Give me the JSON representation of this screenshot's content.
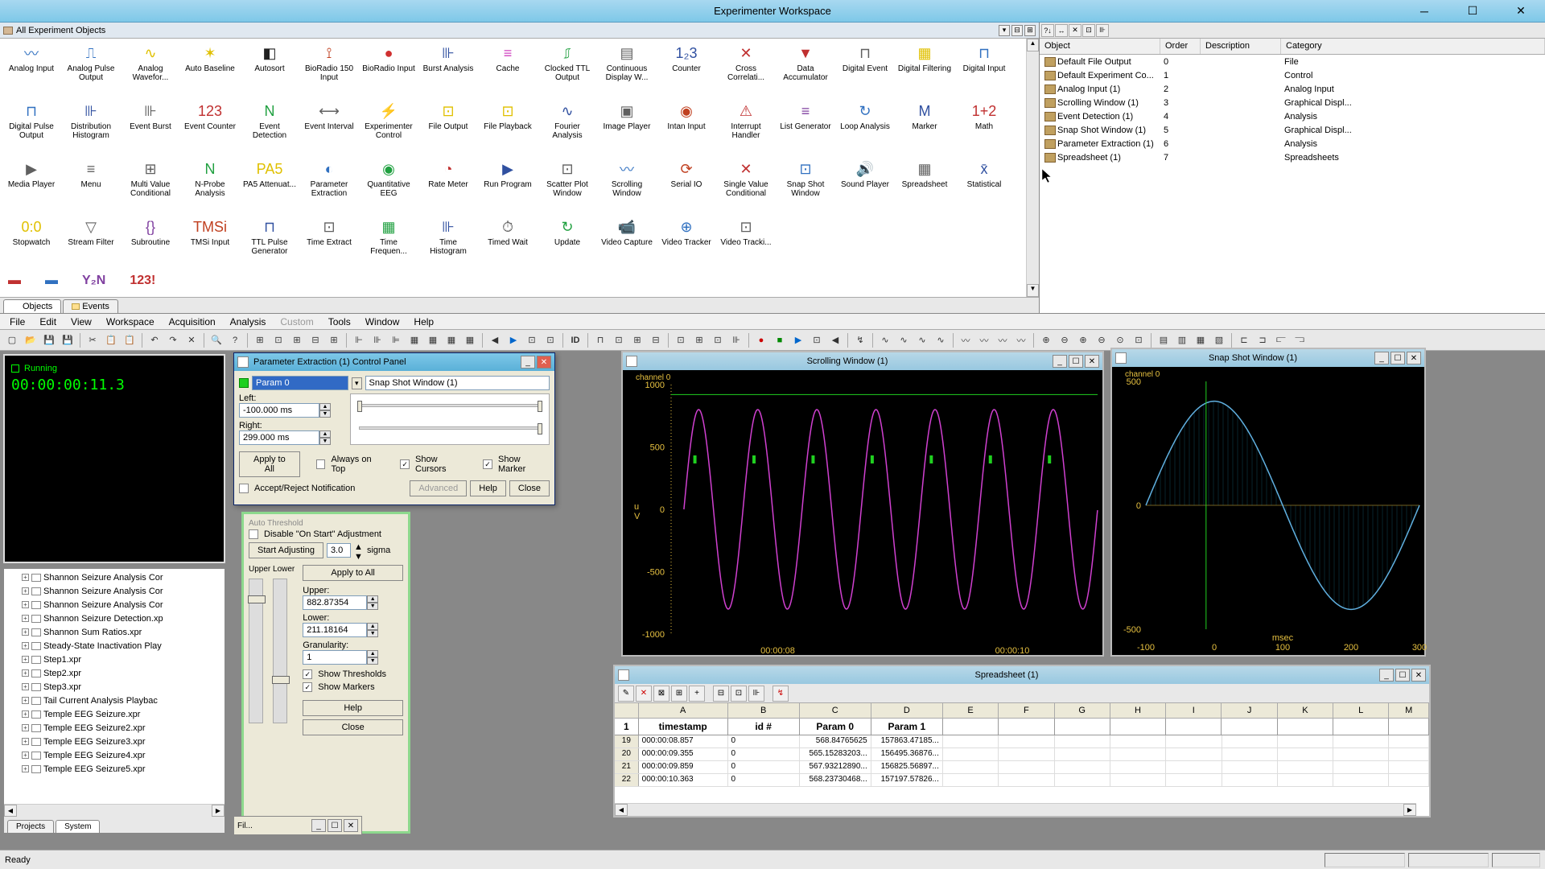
{
  "window": {
    "title": "Experimenter Workspace"
  },
  "palette": {
    "title": "All Experiment Objects",
    "tabs": {
      "objects": "Objects",
      "events": "Events"
    },
    "tools": [
      {
        "label": "Analog Input",
        "icon": "〰",
        "c": "#3070c0"
      },
      {
        "label": "Analog Pulse Output",
        "icon": "⎍",
        "c": "#3070c0"
      },
      {
        "label": "Analog Wavefor...",
        "icon": "∿",
        "c": "#e0c000"
      },
      {
        "label": "Auto Baseline",
        "icon": "✶",
        "c": "#e0c000"
      },
      {
        "label": "Autosort",
        "icon": "◧",
        "c": "#202020"
      },
      {
        "label": "BioRadio 150 Input",
        "icon": "⟟",
        "c": "#c04020"
      },
      {
        "label": "BioRadio Input",
        "icon": "●",
        "c": "#d03030"
      },
      {
        "label": "Burst Analysis",
        "icon": "⊪",
        "c": "#3050a0"
      },
      {
        "label": "Cache",
        "icon": "≡",
        "c": "#d040c0"
      },
      {
        "label": "Clocked TTL Output",
        "icon": "⎎",
        "c": "#20a040"
      },
      {
        "label": "Continuous Display W...",
        "icon": "▤",
        "c": "#606060"
      },
      {
        "label": "Counter",
        "icon": "1₂3",
        "c": "#3050a0"
      },
      {
        "label": "Cross Correlati...",
        "icon": "✕",
        "c": "#c03030"
      },
      {
        "label": "Data Accumulator",
        "icon": "▼",
        "c": "#c03030"
      },
      {
        "label": "Digital Event",
        "icon": "⊓",
        "c": "#606060"
      },
      {
        "label": "Digital Filtering",
        "icon": "▦",
        "c": "#e0c000"
      },
      {
        "label": "Digital Input",
        "icon": "⊓",
        "c": "#3070c0"
      },
      {
        "label": "Digital Pulse Output",
        "icon": "⊓",
        "c": "#3070c0"
      },
      {
        "label": "Distribution Histogram",
        "icon": "⊪",
        "c": "#3050a0"
      },
      {
        "label": "Event Burst",
        "icon": "⊪",
        "c": "#606060"
      },
      {
        "label": "Event Counter",
        "icon": "123",
        "c": "#c03030"
      },
      {
        "label": "Event Detection",
        "icon": "N",
        "c": "#20a040"
      },
      {
        "label": "Event Interval",
        "icon": "⟷",
        "c": "#606060"
      },
      {
        "label": "Experimenter Control",
        "icon": "⚡",
        "c": "#e0c000"
      },
      {
        "label": "File Output",
        "icon": "⊡",
        "c": "#e0c000"
      },
      {
        "label": "File Playback",
        "icon": "⊡",
        "c": "#e0c000"
      },
      {
        "label": "Fourier Analysis",
        "icon": "∿",
        "c": "#3050a0"
      },
      {
        "label": "Image Player",
        "icon": "▣",
        "c": "#606060"
      },
      {
        "label": "Intan Input",
        "icon": "◉",
        "c": "#c04020"
      },
      {
        "label": "Interrupt Handler",
        "icon": "⚠",
        "c": "#c03030"
      },
      {
        "label": "List Generator",
        "icon": "≡",
        "c": "#8040a0"
      },
      {
        "label": "Loop Analysis",
        "icon": "↻",
        "c": "#3070c0"
      },
      {
        "label": "Marker",
        "icon": "M",
        "c": "#3050a0"
      },
      {
        "label": "Math",
        "icon": "1+2",
        "c": "#c03030"
      },
      {
        "label": "Media Player",
        "icon": "▶",
        "c": "#606060"
      },
      {
        "label": "Menu",
        "icon": "≡",
        "c": "#606060"
      },
      {
        "label": "Multi Value Conditional",
        "icon": "⊞",
        "c": "#606060"
      },
      {
        "label": "N-Probe Analysis",
        "icon": "N",
        "c": "#20a040"
      },
      {
        "label": "PA5 Attenuat...",
        "icon": "PA5",
        "c": "#e0c000"
      },
      {
        "label": "Parameter Extraction",
        "icon": "◐",
        "c": "#3070c0"
      },
      {
        "label": "Quantitative EEG",
        "icon": "◉",
        "c": "#20a040"
      },
      {
        "label": "Rate Meter",
        "icon": "◔",
        "c": "#c03030"
      },
      {
        "label": "Run Program",
        "icon": "▶",
        "c": "#3050a0"
      },
      {
        "label": "Scatter Plot Window",
        "icon": "⊡",
        "c": "#606060"
      },
      {
        "label": "Scrolling Window",
        "icon": "〰",
        "c": "#3070c0"
      },
      {
        "label": "Serial IO",
        "icon": "⟳",
        "c": "#c04020"
      },
      {
        "label": "Single Value Conditional",
        "icon": "✕",
        "c": "#c03030"
      },
      {
        "label": "Snap Shot Window",
        "icon": "⊡",
        "c": "#3070c0"
      },
      {
        "label": "Sound Player",
        "icon": "🔊",
        "c": "#c03030"
      },
      {
        "label": "Spreadsheet",
        "icon": "▦",
        "c": "#606060"
      },
      {
        "label": "Statistical",
        "icon": "x̄",
        "c": "#3050a0"
      },
      {
        "label": "Stopwatch",
        "icon": "0:0",
        "c": "#e0c000"
      },
      {
        "label": "Stream Filter",
        "icon": "▽",
        "c": "#606060"
      },
      {
        "label": "Subroutine",
        "icon": "{}",
        "c": "#8040a0"
      },
      {
        "label": "TMSi Input",
        "icon": "TMSi",
        "c": "#c04020"
      },
      {
        "label": "TTL Pulse Generator",
        "icon": "⊓",
        "c": "#3050a0"
      },
      {
        "label": "Time Extract",
        "icon": "⊡",
        "c": "#606060"
      },
      {
        "label": "Time Frequen...",
        "icon": "▦",
        "c": "#20a040"
      },
      {
        "label": "Time Histogram",
        "icon": "⊪",
        "c": "#3050a0"
      },
      {
        "label": "Timed Wait",
        "icon": "⏱",
        "c": "#606060"
      },
      {
        "label": "Update",
        "icon": "↻",
        "c": "#20a040"
      },
      {
        "label": "Video Capture",
        "icon": "📹",
        "c": "#c04020"
      },
      {
        "label": "Video Tracker",
        "icon": "⊕",
        "c": "#3070c0"
      },
      {
        "label": "Video Tracki...",
        "icon": "⊡",
        "c": "#606060"
      }
    ],
    "extra": [
      {
        "icon": "▬",
        "c": "#c03030"
      },
      {
        "icon": "▬",
        "c": "#3070c0"
      },
      {
        "icon": "Y₂N",
        "c": "#8040a0"
      },
      {
        "icon": "123!",
        "c": "#c03030"
      }
    ]
  },
  "objectList": {
    "headers": {
      "object": "Object",
      "order": "Order",
      "description": "Description",
      "category": "Category"
    },
    "rows": [
      {
        "name": "Default File Output",
        "order": "0",
        "cat": "File"
      },
      {
        "name": "Default Experiment Co...",
        "order": "1",
        "cat": "Control"
      },
      {
        "name": "Analog Input (1)",
        "order": "2",
        "cat": "Analog Input"
      },
      {
        "name": "Scrolling Window (1)",
        "order": "3",
        "cat": "Graphical Displ..."
      },
      {
        "name": "Event Detection (1)",
        "order": "4",
        "cat": "Analysis"
      },
      {
        "name": "Snap Shot Window (1)",
        "order": "5",
        "cat": "Graphical Displ..."
      },
      {
        "name": "Parameter Extraction (1)",
        "order": "6",
        "cat": "Analysis"
      },
      {
        "name": "Spreadsheet (1)",
        "order": "7",
        "cat": "Spreadsheets"
      }
    ]
  },
  "menu": [
    "File",
    "Edit",
    "View",
    "Workspace",
    "Acquisition",
    "Analysis",
    "Custom",
    "Tools",
    "Window",
    "Help"
  ],
  "menuDisabled": [
    "Custom"
  ],
  "running": {
    "label": "Running",
    "time": "00:00:00:11.3"
  },
  "tree": {
    "items": [
      "Shannon Seizure Analysis Cor",
      "Shannon Seizure Analysis Cor",
      "Shannon Seizure Analysis Cor",
      "Shannon Seizure Detection.xp",
      "Shannon Sum Ratios.xpr",
      "Steady-State Inactivation Play",
      "Step1.xpr",
      "Step2.xpr",
      "Step3.xpr",
      "Tail Current Analysis Playbac",
      "Temple EEG Seizure.xpr",
      "Temple EEG Seizure2.xpr",
      "Temple EEG Seizure3.xpr",
      "Temple EEG Seizure4.xpr",
      "Temple EEG Seizure5.xpr"
    ],
    "tabs": {
      "projects": "Projects",
      "system": "System"
    }
  },
  "paramDlg": {
    "title": "Parameter Extraction (1) Control Panel",
    "param": "Param 0",
    "target": "Snap Shot Window (1)",
    "left_label": "Left:",
    "left": "-100.000 ms",
    "right_label": "Right:",
    "right": "299.000 ms",
    "applyAll": "Apply to All",
    "alwaysTop": "Always on Top",
    "showCursors": "Show Cursors",
    "showMarker": "Show Marker",
    "acceptReject": "Accept/Reject Notification",
    "advanced": "Advanced",
    "help": "Help",
    "close": "Close"
  },
  "thresh": {
    "autoTh": "Auto Threshold",
    "disable": "Disable \"On Start\" Adjustment",
    "startAdj": "Start Adjusting",
    "sigmaVal": "3.0",
    "sigma": "sigma",
    "upperLower": "Upper Lower",
    "applyAll": "Apply to All",
    "upper_l": "Upper:",
    "upper": "882.87354",
    "lower_l": "Lower:",
    "lower": "211.18164",
    "gran_l": "Granularity:",
    "gran": "1",
    "showTh": "Show Thresholds",
    "showMk": "Show Markers",
    "help": "Help",
    "close": "Close"
  },
  "scrollWin": {
    "title": "Scrolling Window (1)",
    "channel": "channel 0",
    "yticks": [
      "1000",
      "500",
      "0",
      "-500",
      "-1000"
    ],
    "ylabel": "u\nV",
    "xticks": [
      "00:00:08",
      "00:00:10"
    ],
    "amp": 800,
    "threshold": 0.92,
    "markerY": 0.4,
    "cycles": 7,
    "dataStart": 0.03,
    "waveColor": "#d040d0",
    "threshColor": "#20d020",
    "markerColor": "#20d020",
    "axisColor": "#e6c040"
  },
  "snapWin": {
    "title": "Snap Shot Window (1)",
    "channel": "channel 0",
    "yticks": [
      "500",
      "0",
      "-500"
    ],
    "xlabel": "msec",
    "xticks": [
      "-100",
      "0",
      "100",
      "200",
      "300"
    ],
    "waveColor": "#60b0e0",
    "hatchColor": "#2090b0",
    "cursorColor": "#20d020"
  },
  "spreadsheet": {
    "title": "Spreadsheet (1)",
    "colHdr": [
      "",
      "A",
      "B",
      "C",
      "D",
      "E",
      "F",
      "G",
      "H",
      "I",
      "J",
      "K",
      "L",
      "M"
    ],
    "subHdr": [
      "1",
      "timestamp",
      "id #",
      "Param 0",
      "Param 1"
    ],
    "rows": [
      {
        "n": "19",
        "t": "000:00:08.857",
        "id": "0",
        "p0": "568.84765625",
        "p1": "157863.47185..."
      },
      {
        "n": "20",
        "t": "000:00:09.355",
        "id": "0",
        "p0": "565.15283203...",
        "p1": "156495.36876..."
      },
      {
        "n": "21",
        "t": "000:00:09.859",
        "id": "0",
        "p0": "567.93212890...",
        "p1": "156825.56897..."
      },
      {
        "n": "22",
        "t": "000:00:10.363",
        "id": "0",
        "p0": "568.23730468...",
        "p1": "157197.57826..."
      }
    ]
  },
  "status": {
    "ready": "Ready"
  },
  "toolbarID": "ID"
}
